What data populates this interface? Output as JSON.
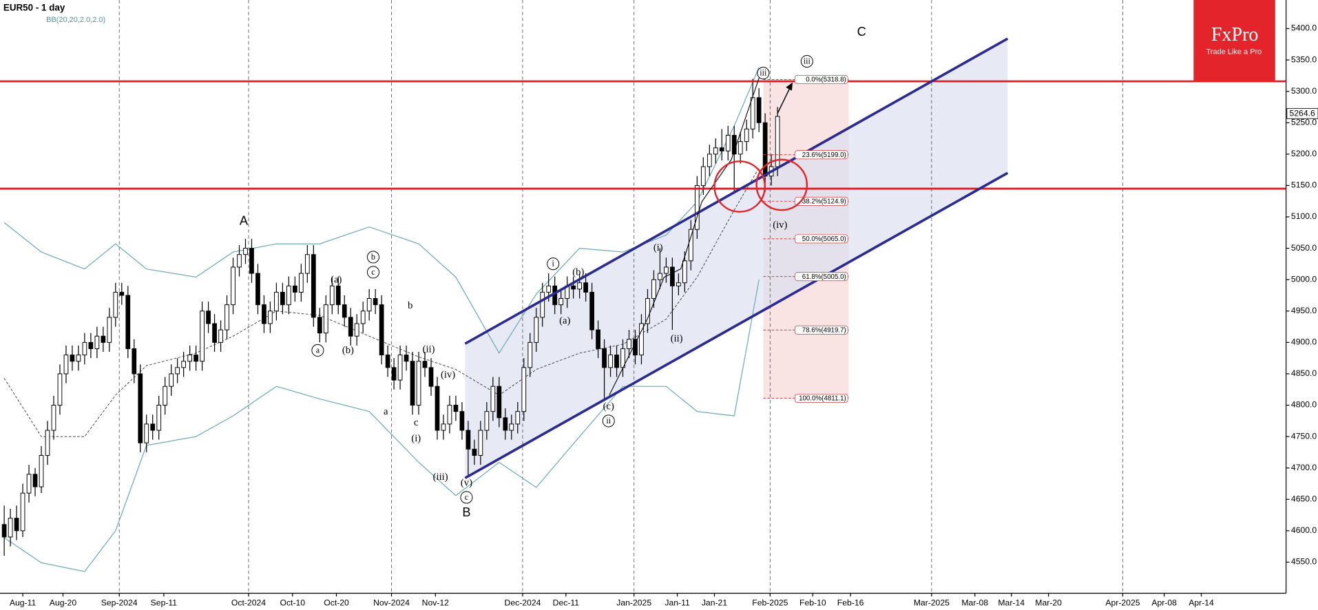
{
  "chart_data": {
    "type": "candlestick",
    "title": "EUR50 - 1 day",
    "indicator": "BB(20,20,2.0,2.0)",
    "logo": {
      "name": "FxPro",
      "tagline": "Trade Like a Pro"
    },
    "xlim": [
      -0.68,
      207.2
    ],
    "ylim": [
      4500.5,
      5445.5
    ],
    "yticks": [
      {
        "value": 4550,
        "label": "4550.0"
      },
      {
        "value": 4600,
        "label": "4600.0"
      },
      {
        "value": 4650,
        "label": "4650.0"
      },
      {
        "value": 4700,
        "label": "4700.0"
      },
      {
        "value": 4750,
        "label": "4750.0"
      },
      {
        "value": 4800,
        "label": "4800.0"
      },
      {
        "value": 4850,
        "label": "4850.0"
      },
      {
        "value": 4900,
        "label": "4900.0"
      },
      {
        "value": 4950,
        "label": "4950.0"
      },
      {
        "value": 5000,
        "label": "5000.0"
      },
      {
        "value": 5050,
        "label": "5050.0"
      },
      {
        "value": 5100,
        "label": "5100.0"
      },
      {
        "value": 5150,
        "label": "5150.0"
      },
      {
        "value": 5200,
        "label": "5200.0"
      },
      {
        "value": 5250,
        "label": "5250.0"
      },
      {
        "value": 5300,
        "label": "5300.0"
      },
      {
        "value": 5350,
        "label": "5350.0"
      },
      {
        "value": 5400,
        "label": "5400.0"
      }
    ],
    "xticks": [
      {
        "value": 3.0,
        "label": "Aug-11"
      },
      {
        "value": 9.5,
        "label": "Aug-20"
      },
      {
        "value": 18.6,
        "label": "Sep-2024"
      },
      {
        "value": 25.8,
        "label": "Sep-11"
      },
      {
        "value": 39.5,
        "label": "Oct-2024"
      },
      {
        "value": 46.6,
        "label": "Oct-10"
      },
      {
        "value": 53.7,
        "label": "Oct-20"
      },
      {
        "value": 62.6,
        "label": "Nov-2024"
      },
      {
        "value": 69.7,
        "label": "Nov-12"
      },
      {
        "value": 83.8,
        "label": "Dec-2024"
      },
      {
        "value": 90.8,
        "label": "Dec-11"
      },
      {
        "value": 101.8,
        "label": "Jan-2025"
      },
      {
        "value": 108.8,
        "label": "Jan-11"
      },
      {
        "value": 114.8,
        "label": "Jan-21"
      },
      {
        "value": 123.8,
        "label": "Feb-2025"
      },
      {
        "value": 130.7,
        "label": "Feb-10"
      },
      {
        "value": 136.8,
        "label": "Feb-16"
      },
      {
        "value": 149.9,
        "label": "Mar-2025"
      },
      {
        "value": 156.9,
        "label": "Mar-08"
      },
      {
        "value": 162.8,
        "label": "Mar-14"
      },
      {
        "value": 168.8,
        "label": "Mar-20"
      },
      {
        "value": 180.8,
        "label": "Apr-2025"
      },
      {
        "value": 187.5,
        "label": "Apr-08"
      },
      {
        "value": 193.5,
        "label": "Apr-14"
      }
    ],
    "last_price": 5264.6,
    "candles": [
      [
        4610,
        4640,
        4560,
        4590
      ],
      [
        4590,
        4635,
        4575,
        4620
      ],
      [
        4620,
        4640,
        4585,
        4600
      ],
      [
        4600,
        4675,
        4590,
        4660
      ],
      [
        4660,
        4705,
        4645,
        4690
      ],
      [
        4690,
        4700,
        4655,
        4670
      ],
      [
        4670,
        4735,
        4660,
        4720
      ],
      [
        4720,
        4775,
        4705,
        4760
      ],
      [
        4760,
        4815,
        4745,
        4800
      ],
      [
        4800,
        4865,
        4785,
        4850
      ],
      [
        4850,
        4895,
        4835,
        4880
      ],
      [
        4880,
        4895,
        4855,
        4870
      ],
      [
        4870,
        4895,
        4855,
        4880
      ],
      [
        4880,
        4915,
        4865,
        4900
      ],
      [
        4900,
        4915,
        4875,
        4890
      ],
      [
        4890,
        4925,
        4875,
        4910
      ],
      [
        4910,
        4925,
        4885,
        4900
      ],
      [
        4900,
        4955,
        4885,
        4940
      ],
      [
        4940,
        4995,
        4925,
        4980
      ],
      [
        4980,
        4995,
        4960,
        4975
      ],
      [
        4975,
        4990,
        4875,
        4890
      ],
      [
        4890,
        4905,
        4835,
        4850
      ],
      [
        4850,
        4865,
        4725,
        4740
      ],
      [
        4740,
        4785,
        4725,
        4770
      ],
      [
        4770,
        4785,
        4745,
        4760
      ],
      [
        4760,
        4815,
        4745,
        4800
      ],
      [
        4800,
        4845,
        4785,
        4830
      ],
      [
        4830,
        4865,
        4815,
        4850
      ],
      [
        4850,
        4875,
        4835,
        4860
      ],
      [
        4860,
        4885,
        4845,
        4870
      ],
      [
        4870,
        4895,
        4855,
        4880
      ],
      [
        4880,
        4895,
        4855,
        4870
      ],
      [
        4870,
        4965,
        4855,
        4950
      ],
      [
        4950,
        4965,
        4915,
        4930
      ],
      [
        4930,
        4945,
        4885,
        4900
      ],
      [
        4900,
        4935,
        4885,
        4920
      ],
      [
        4920,
        4975,
        4905,
        4960
      ],
      [
        4960,
        5035,
        4945,
        5020
      ],
      [
        5020,
        5055,
        5005,
        5040
      ],
      [
        5040,
        5065,
        5025,
        5050
      ],
      [
        5050,
        5065,
        4995,
        5010
      ],
      [
        5010,
        5025,
        4945,
        4960
      ],
      [
        4960,
        4975,
        4915,
        4930
      ],
      [
        4930,
        4965,
        4915,
        4950
      ],
      [
        4950,
        4995,
        4935,
        4980
      ],
      [
        4980,
        4995,
        4945,
        4960
      ],
      [
        4960,
        5005,
        4945,
        4990
      ],
      [
        4990,
        5005,
        4965,
        4980
      ],
      [
        4980,
        5025,
        4965,
        5010
      ],
      [
        5010,
        5055,
        4995,
        5040
      ],
      [
        5040,
        5055,
        4925,
        4940
      ],
      [
        4940,
        4955,
        4900,
        4915
      ],
      [
        4915,
        4975,
        4900,
        4960
      ],
      [
        4960,
        5005,
        4945,
        4990
      ],
      [
        4990,
        5005,
        4945,
        4960
      ],
      [
        4960,
        4975,
        4925,
        4940
      ],
      [
        4940,
        4955,
        4895,
        4910
      ],
      [
        4910,
        4945,
        4895,
        4930
      ],
      [
        4930,
        4965,
        4915,
        4950
      ],
      [
        4950,
        4985,
        4935,
        4970
      ],
      [
        4970,
        4985,
        4945,
        4960
      ],
      [
        4960,
        4975,
        4865,
        4880
      ],
      [
        4880,
        4895,
        4845,
        4860
      ],
      [
        4860,
        4875,
        4825,
        4840
      ],
      [
        4840,
        4895,
        4825,
        4880
      ],
      [
        4880,
        4895,
        4855,
        4870
      ],
      [
        4870,
        4885,
        4785,
        4800
      ],
      [
        4800,
        4885,
        4785,
        4870
      ],
      [
        4870,
        4885,
        4845,
        4860
      ],
      [
        4860,
        4875,
        4815,
        4830
      ],
      [
        4830,
        4845,
        4745,
        4760
      ],
      [
        4760,
        4785,
        4745,
        4770
      ],
      [
        4770,
        4815,
        4755,
        4800
      ],
      [
        4800,
        4815,
        4775,
        4790
      ],
      [
        4790,
        4805,
        4745,
        4760
      ],
      [
        4760,
        4775,
        4685,
        4730
      ],
      [
        4730,
        4745,
        4705,
        4720
      ],
      [
        4720,
        4775,
        4705,
        4760
      ],
      [
        4760,
        4805,
        4745,
        4790
      ],
      [
        4790,
        4845,
        4775,
        4830
      ],
      [
        4830,
        4845,
        4765,
        4780
      ],
      [
        4780,
        4795,
        4745,
        4760
      ],
      [
        4760,
        4785,
        4745,
        4770
      ],
      [
        4770,
        4805,
        4755,
        4790
      ],
      [
        4790,
        4875,
        4775,
        4860
      ],
      [
        4860,
        4915,
        4845,
        4900
      ],
      [
        4900,
        4955,
        4885,
        4940
      ],
      [
        4940,
        4995,
        4925,
        4980
      ],
      [
        4980,
        5010,
        4965,
        4990
      ],
      [
        4990,
        5005,
        4945,
        4960
      ],
      [
        4960,
        4985,
        4945,
        4970
      ],
      [
        4970,
        5005,
        4955,
        4990
      ],
      [
        4990,
        5005,
        4970,
        4985
      ],
      [
        4985,
        5010,
        4970,
        4995
      ],
      [
        4995,
        5010,
        4965,
        4980
      ],
      [
        4980,
        4995,
        4905,
        4920
      ],
      [
        4920,
        4935,
        4875,
        4890
      ],
      [
        4890,
        4905,
        4810,
        4860
      ],
      [
        4860,
        4895,
        4845,
        4880
      ],
      [
        4880,
        4895,
        4845,
        4860
      ],
      [
        4860,
        4905,
        4845,
        4890
      ],
      [
        4890,
        4920,
        4875,
        4905
      ],
      [
        4905,
        4920,
        4865,
        4880
      ],
      [
        4880,
        4945,
        4865,
        4930
      ],
      [
        4930,
        4985,
        4915,
        4970
      ],
      [
        4970,
        5015,
        4955,
        5000
      ],
      [
        5000,
        5050,
        4985,
        5010
      ],
      [
        5010,
        5035,
        4995,
        5020
      ],
      [
        5020,
        5035,
        4920,
        4990
      ],
      [
        4990,
        5010,
        4975,
        4995
      ],
      [
        4995,
        5045,
        4980,
        5030
      ],
      [
        5030,
        5095,
        5015,
        5080
      ],
      [
        5080,
        5165,
        5065,
        5150
      ],
      [
        5150,
        5195,
        5135,
        5180
      ],
      [
        5180,
        5215,
        5165,
        5200
      ],
      [
        5200,
        5225,
        5185,
        5210
      ],
      [
        5210,
        5240,
        5190,
        5205
      ],
      [
        5205,
        5245,
        5190,
        5230
      ],
      [
        5230,
        5245,
        5140,
        5200
      ],
      [
        5200,
        5235,
        5185,
        5220
      ],
      [
        5220,
        5255,
        5205,
        5240
      ],
      [
        5240,
        5320,
        5225,
        5290
      ],
      [
        5290,
        5305,
        5235,
        5250
      ],
      [
        5250,
        5265,
        5140,
        5165
      ],
      [
        5165,
        5200,
        5150,
        5180
      ],
      [
        5180,
        5275,
        5165,
        5260
      ]
    ],
    "bands": {
      "color": "#6aaab0",
      "x": [
        0,
        6,
        13,
        18,
        23,
        31,
        37,
        44,
        51,
        59,
        67,
        73,
        80,
        86,
        93,
        100,
        107,
        112,
        118,
        122
      ],
      "upper": [
        5091,
        5044,
        5017,
        5057,
        5017,
        5004,
        5044,
        5057,
        5057,
        5084,
        5057,
        5004,
        4883,
        4977,
        5050,
        5044,
        5071,
        5124,
        5245,
        5338
      ],
      "middle": [
        4843,
        4750,
        4750,
        4816,
        4863,
        4883,
        4910,
        4950,
        4943,
        4910,
        4877,
        4857,
        4816,
        4857,
        4883,
        4897,
        4937,
        5004,
        5111,
        5178
      ],
      "lower": [
        4589,
        4549,
        4535,
        4600,
        4736,
        4750,
        4783,
        4830,
        4810,
        4790,
        4709,
        4656,
        4709,
        4669,
        4750,
        4830,
        4830,
        4790,
        4783,
        5000
      ]
    },
    "hlines": [
      5316,
      5145
    ],
    "hline_color": "#e8141b",
    "channel": {
      "color": "#2b2b8f",
      "upper": [
        [
          74.5,
          4898
        ],
        [
          162.2,
          5384
        ]
      ],
      "lower": [
        [
          74.5,
          4684
        ],
        [
          162.2,
          5170
        ]
      ]
    },
    "fib": {
      "x": [
        122.7,
        136.5
      ],
      "levels": [
        {
          "value": 5318.8,
          "label": "0.0%(5318.8)"
        },
        {
          "value": 5199.0,
          "label": "23.6%(5199.0)"
        },
        {
          "value": 5124.9,
          "label": "38.2%(5124.9)"
        },
        {
          "value": 5065.0,
          "label": "50.0%(5065.0)"
        },
        {
          "value": 5005.0,
          "label": "61.8%(5005.0)"
        },
        {
          "value": 4919.7,
          "label": "78.6%(4919.7)"
        },
        {
          "value": 4811.1,
          "label": "100.0%(4811.1)"
        }
      ]
    },
    "annotations": [
      {
        "text": "A",
        "circled": false
      },
      {
        "text": "B",
        "circled": false
      },
      {
        "text": "C",
        "circled": false
      },
      {
        "text": "b",
        "circled": true
      },
      {
        "text": "c",
        "circled": true
      },
      {
        "text": "(a)",
        "circled": false
      },
      {
        "text": "a",
        "circled": true
      },
      {
        "text": "(b)",
        "circled": false
      },
      {
        "text": "b",
        "circled": false
      },
      {
        "text": "a",
        "circled": false
      },
      {
        "text": "c",
        "circled": false
      },
      {
        "text": "(i)",
        "circled": false
      },
      {
        "text": "(ii)",
        "circled": false
      },
      {
        "text": "(iv)",
        "circled": false
      },
      {
        "text": "(iii)",
        "circled": false
      },
      {
        "text": "(v)",
        "circled": false
      },
      {
        "text": "c",
        "circled": true
      },
      {
        "text": "i",
        "circled": true
      },
      {
        "text": "(b)",
        "circled": false
      },
      {
        "text": "(a)",
        "circled": false
      },
      {
        "text": "(c)",
        "circled": false
      },
      {
        "text": "ii",
        "circled": true
      },
      {
        "text": "(i)",
        "circled": false
      },
      {
        "text": "(ii)",
        "circled": false
      },
      {
        "text": "iii",
        "circled": true
      },
      {
        "text": "iii",
        "circled": true
      },
      {
        "text": "(iv)",
        "circled": false
      }
    ]
  }
}
